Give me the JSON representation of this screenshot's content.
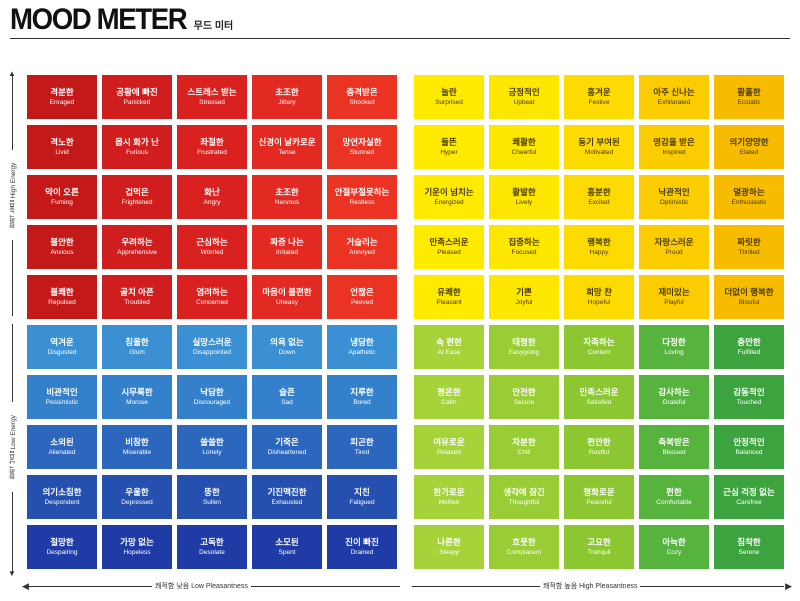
{
  "title": {
    "main": "MOOD METER",
    "sub": "무드 미터"
  },
  "axes": {
    "high_energy": "활력 높음 High Energy",
    "low_energy": "활력 낮음 Low Energy",
    "low_pleasantness": "쾌적함 낮음 Low Pleasantness",
    "high_pleasantness": "쾌적함 높음 High Pleasantness"
  },
  "colors": {
    "red": [
      "#c41919",
      "#d01e1e",
      "#d9221f",
      "#e32a22",
      "#ea3323"
    ],
    "yellow": [
      "#ffea00",
      "#fde600",
      "#fedb00",
      "#fbcc00",
      "#f7bc00"
    ],
    "blue": [
      "#1f3ba5",
      "#2550b0",
      "#2c67bd",
      "#3580cb",
      "#3b90d4"
    ],
    "green": [
      "#a6d33a",
      "#99cd35",
      "#8cc631",
      "#56b33d",
      "#3da33e"
    ]
  },
  "quadrants": {
    "red": [
      [
        {
          "kr": "격분한",
          "en": "Enraged"
        },
        {
          "kr": "공황에 빠진",
          "en": "Panicked"
        },
        {
          "kr": "스트레스 받는",
          "en": "Stressed"
        },
        {
          "kr": "초조한",
          "en": "Jittery"
        },
        {
          "kr": "충격받은",
          "en": "Shocked"
        }
      ],
      [
        {
          "kr": "격노한",
          "en": "Livid"
        },
        {
          "kr": "몹시 화가 난",
          "en": "Furious"
        },
        {
          "kr": "좌절한",
          "en": "Frustrated"
        },
        {
          "kr": "신경이 날카로운",
          "en": "Tense"
        },
        {
          "kr": "망연자실한",
          "en": "Stunned"
        }
      ],
      [
        {
          "kr": "약이 오른",
          "en": "Fuming"
        },
        {
          "kr": "겁먹은",
          "en": "Frightened"
        },
        {
          "kr": "화난",
          "en": "Angry"
        },
        {
          "kr": "초조한",
          "en": "Nervous"
        },
        {
          "kr": "안절부절못하는",
          "en": "Restless"
        }
      ],
      [
        {
          "kr": "불안한",
          "en": "Anxious"
        },
        {
          "kr": "우려하는",
          "en": "Apprehensive"
        },
        {
          "kr": "근심하는",
          "en": "Worried"
        },
        {
          "kr": "짜증 나는",
          "en": "Irritated"
        },
        {
          "kr": "거슬리는",
          "en": "Annoyed"
        }
      ],
      [
        {
          "kr": "불쾌한",
          "en": "Repulsed"
        },
        {
          "kr": "골치 아픈",
          "en": "Troubled"
        },
        {
          "kr": "염려하는",
          "en": "Concerned"
        },
        {
          "kr": "마음이 불편한",
          "en": "Uneasy"
        },
        {
          "kr": "언짢은",
          "en": "Peeved"
        }
      ]
    ],
    "yellow": [
      [
        {
          "kr": "놀란",
          "en": "Surprised"
        },
        {
          "kr": "긍정적인",
          "en": "Upbeat"
        },
        {
          "kr": "흥겨운",
          "en": "Festive"
        },
        {
          "kr": "아주 신나는",
          "en": "Exhilarated"
        },
        {
          "kr": "황홀한",
          "en": "Ecstatic"
        }
      ],
      [
        {
          "kr": "들뜬",
          "en": "Hyper"
        },
        {
          "kr": "쾌활한",
          "en": "Cheerful"
        },
        {
          "kr": "동기 부여된",
          "en": "Motivated"
        },
        {
          "kr": "영감을 받은",
          "en": "Inspired"
        },
        {
          "kr": "의기양양한",
          "en": "Elated"
        }
      ],
      [
        {
          "kr": "기운이 넘치는",
          "en": "Energized"
        },
        {
          "kr": "활발한",
          "en": "Lively"
        },
        {
          "kr": "흥분한",
          "en": "Excited"
        },
        {
          "kr": "낙관적인",
          "en": "Optimistic"
        },
        {
          "kr": "열광하는",
          "en": "Enthusiastic"
        }
      ],
      [
        {
          "kr": "만족스러운",
          "en": "Pleased"
        },
        {
          "kr": "집중하는",
          "en": "Focused"
        },
        {
          "kr": "행복한",
          "en": "Happy"
        },
        {
          "kr": "자랑스러운",
          "en": "Proud"
        },
        {
          "kr": "짜릿한",
          "en": "Thrilled"
        }
      ],
      [
        {
          "kr": "유쾌한",
          "en": "Pleasant"
        },
        {
          "kr": "기쁜",
          "en": "Joyful"
        },
        {
          "kr": "희망 찬",
          "en": "Hopeful"
        },
        {
          "kr": "재미있는",
          "en": "Playful"
        },
        {
          "kr": "더없이 행복한",
          "en": "Blissful"
        }
      ]
    ],
    "blue": [
      [
        {
          "kr": "역겨운",
          "en": "Disgusted"
        },
        {
          "kr": "침울한",
          "en": "Glum"
        },
        {
          "kr": "실망스러운",
          "en": "Disappointed"
        },
        {
          "kr": "의욕 없는",
          "en": "Down"
        },
        {
          "kr": "냉담한",
          "en": "Apathetic"
        }
      ],
      [
        {
          "kr": "비관적인",
          "en": "Pessimistic"
        },
        {
          "kr": "시무룩한",
          "en": "Morose"
        },
        {
          "kr": "낙담한",
          "en": "Discouraged"
        },
        {
          "kr": "슬픈",
          "en": "Sad"
        },
        {
          "kr": "지루한",
          "en": "Bored"
        }
      ],
      [
        {
          "kr": "소외된",
          "en": "Alienated"
        },
        {
          "kr": "비참한",
          "en": "Miserable"
        },
        {
          "kr": "쓸쓸한",
          "en": "Lonely"
        },
        {
          "kr": "기죽은",
          "en": "Disheartened"
        },
        {
          "kr": "피곤한",
          "en": "Tired"
        }
      ],
      [
        {
          "kr": "의기소침한",
          "en": "Despondent"
        },
        {
          "kr": "우울한",
          "en": "Depressed"
        },
        {
          "kr": "뚱한",
          "en": "Sullen"
        },
        {
          "kr": "기진맥진한",
          "en": "Exhausted"
        },
        {
          "kr": "지친",
          "en": "Fatigued"
        }
      ],
      [
        {
          "kr": "절망한",
          "en": "Despairing"
        },
        {
          "kr": "가망 없는",
          "en": "Hopeless"
        },
        {
          "kr": "고독한",
          "en": "Desolate"
        },
        {
          "kr": "소모된",
          "en": "Spent"
        },
        {
          "kr": "진이 빠진",
          "en": "Drained"
        }
      ]
    ],
    "green": [
      [
        {
          "kr": "속 편한",
          "en": "At Ease"
        },
        {
          "kr": "태평한",
          "en": "Easygoing"
        },
        {
          "kr": "자족하는",
          "en": "Content"
        },
        {
          "kr": "다정한",
          "en": "Loving"
        },
        {
          "kr": "충만한",
          "en": "Fulfilled"
        }
      ],
      [
        {
          "kr": "평온한",
          "en": "Calm"
        },
        {
          "kr": "안전한",
          "en": "Secure"
        },
        {
          "kr": "만족스러운",
          "en": "Satisfied"
        },
        {
          "kr": "감사하는",
          "en": "Grateful"
        },
        {
          "kr": "감동적인",
          "en": "Touched"
        }
      ],
      [
        {
          "kr": "여유로운",
          "en": "Relaxed"
        },
        {
          "kr": "차분한",
          "en": "Chill"
        },
        {
          "kr": "편안한",
          "en": "Restful"
        },
        {
          "kr": "축복받은",
          "en": "Blessed"
        },
        {
          "kr": "안정적인",
          "en": "Balanced"
        }
      ],
      [
        {
          "kr": "한가로운",
          "en": "Mellow"
        },
        {
          "kr": "생각에 잠긴",
          "en": "Thoughtful"
        },
        {
          "kr": "평화로운",
          "en": "Peaceful"
        },
        {
          "kr": "편한",
          "en": "Comfortable"
        },
        {
          "kr": "근심 걱정 없는",
          "en": "Carefree"
        }
      ],
      [
        {
          "kr": "나른한",
          "en": "Sleepy"
        },
        {
          "kr": "흐뭇한",
          "en": "Complacent"
        },
        {
          "kr": "고요한",
          "en": "Tranquil"
        },
        {
          "kr": "아늑한",
          "en": "Cozy"
        },
        {
          "kr": "침착한",
          "en": "Serene"
        }
      ]
    ]
  }
}
